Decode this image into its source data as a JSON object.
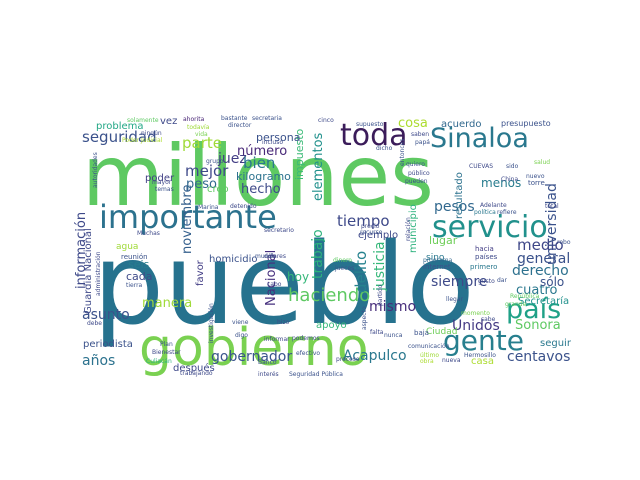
{
  "cloud": {
    "colors": {
      "teal_dark": "#2a7c8e",
      "green": "#5ec962",
      "purple_dark": "#3b1c5a",
      "blue": "#3b528b",
      "teal": "#21918c",
      "lime": "#addc30",
      "yellow_green": "#a0da39",
      "teal_light": "#1fa187"
    },
    "words": [
      {
        "text": "pueblo",
        "color": "#26728e"
      },
      {
        "text": "millones",
        "color": "#5ec962"
      },
      {
        "text": "gobierno",
        "color": "#7ad151"
      },
      {
        "text": "importante",
        "color": "#2c728e"
      },
      {
        "text": "toda",
        "color": "#3b1c5a"
      },
      {
        "text": "Sinaloa",
        "color": "#2a788e"
      },
      {
        "text": "servicio",
        "color": "#21918c"
      },
      {
        "text": "país",
        "color": "#1fa187"
      },
      {
        "text": "gente",
        "color": "#277f8e"
      },
      {
        "text": "haciendo",
        "color": "#5ec962"
      },
      {
        "text": "seguridad",
        "color": "#3b528b"
      },
      {
        "text": "parte",
        "color": "#a0da39"
      },
      {
        "text": "juez",
        "color": "#433e85"
      },
      {
        "text": "mejor",
        "color": "#3e4989"
      },
      {
        "text": "peso",
        "color": "#31688e"
      },
      {
        "text": "bien",
        "color": "#2a788e"
      },
      {
        "text": "número",
        "color": "#482878"
      },
      {
        "text": "kilogramo",
        "color": "#2c728e"
      },
      {
        "text": "hecho",
        "color": "#3e4a89"
      },
      {
        "text": "impuesto",
        "color": "#3aba76"
      },
      {
        "text": "elementos",
        "color": "#21918c"
      },
      {
        "text": "pesos",
        "color": "#31688e"
      },
      {
        "text": "cosa",
        "color": "#addc30"
      },
      {
        "text": "menos",
        "color": "#287c8e"
      },
      {
        "text": "universidad",
        "color": "#3b528b"
      },
      {
        "text": "tiempo",
        "color": "#3e4989"
      },
      {
        "text": "trabajo",
        "color": "#2db27d"
      },
      {
        "text": "delito",
        "color": "#26828e"
      },
      {
        "text": "justicia",
        "color": "#35b779"
      },
      {
        "text": "medio",
        "color": "#3f4788"
      },
      {
        "text": "general",
        "color": "#3b528b"
      },
      {
        "text": "derecho",
        "color": "#2d718e"
      },
      {
        "text": "cuatro",
        "color": "#2a788e"
      },
      {
        "text": "siempre",
        "color": "#3e4a89"
      },
      {
        "text": "Unidos",
        "color": "#443a83"
      },
      {
        "text": "Sonora",
        "color": "#5ec962"
      },
      {
        "text": "centavos",
        "color": "#3b528b"
      },
      {
        "text": "Acapulco",
        "color": "#2a788e"
      },
      {
        "text": "mismo",
        "color": "#472d7b"
      },
      {
        "text": "gobernador",
        "color": "#3a548c"
      },
      {
        "text": "información",
        "color": "#3e4989"
      },
      {
        "text": "noviembre",
        "color": "#35608d"
      },
      {
        "text": "manera",
        "color": "#a0da39"
      },
      {
        "text": "asunto",
        "color": "#3b528b"
      },
      {
        "text": "años",
        "color": "#2c728e"
      },
      {
        "text": "Nacional",
        "color": "#46307e"
      },
      {
        "text": "hoy",
        "color": "#35b779"
      },
      {
        "text": "lugar",
        "color": "#6ece58"
      },
      {
        "text": "sólo",
        "color": "#3b528b"
      },
      {
        "text": "seguir",
        "color": "#2a788e"
      },
      {
        "text": "Guardia Nacional",
        "color": "#3e4989"
      },
      {
        "text": "periodista",
        "color": "#3b528b"
      },
      {
        "text": "seis",
        "color": "#287d8e"
      },
      {
        "text": "cada",
        "color": "#3e4a89"
      },
      {
        "text": "después",
        "color": "#3e4989"
      },
      {
        "text": "homicidio",
        "color": "#3b528b"
      },
      {
        "text": "poder",
        "color": "#424086"
      },
      {
        "text": "creo",
        "color": "#5ec962"
      },
      {
        "text": "problema",
        "color": "#22a785"
      },
      {
        "text": "agua",
        "color": "#a0da39"
      },
      {
        "text": "favor",
        "color": "#433e85"
      },
      {
        "text": "apoyo",
        "color": "#35b779"
      },
      {
        "text": "persona",
        "color": "#3b528b"
      },
      {
        "text": "Ciudad",
        "color": "#6ece58"
      },
      {
        "text": "casa",
        "color": "#addc30"
      },
      {
        "text": "resultado",
        "color": "#2c728e"
      },
      {
        "text": "municipio",
        "color": "#2db27d"
      },
      {
        "text": "ejemplo",
        "color": "#3e4989"
      },
      {
        "text": "acuerdo",
        "color": "#31688e"
      },
      {
        "text": "Secretaría",
        "color": "#21918c"
      },
      {
        "text": "presupuesto",
        "color": "#3b528b"
      },
      {
        "text": "vez",
        "color": "#3e4989"
      },
      {
        "text": "momento",
        "color": "#7ad151"
      },
      {
        "text": "sino",
        "color": "#2a788e"
      },
      {
        "text": "internet",
        "color": "#3b528b"
      },
      {
        "text": "programa",
        "color": "#31688e"
      },
      {
        "text": "hacia",
        "color": "#433e85"
      },
      {
        "text": "países",
        "color": "#3e4989"
      },
      {
        "text": "primero",
        "color": "#2a788e"
      },
      {
        "text": "dinero",
        "color": "#5ec962"
      },
      {
        "text": "jueces",
        "color": "#3b528b"
      },
      {
        "text": "reunión",
        "color": "#3b528b"
      },
      {
        "text": "proceso",
        "color": "#3e4989"
      },
      {
        "text": "efectivo",
        "color": "#3b528b"
      },
      {
        "text": "Bienestar",
        "color": "#3e4989"
      },
      {
        "text": "investigación",
        "color": "#3b528b"
      },
      {
        "text": "comunicación",
        "color": "#3b528b"
      },
      {
        "text": "Culiacán",
        "color": "#2db27d"
      },
      {
        "text": "Marina",
        "color": "#3b528b"
      },
      {
        "text": "detenido",
        "color": "#3e4989"
      },
      {
        "text": "secretaria",
        "color": "#3b528b"
      },
      {
        "text": "secretario",
        "color": "#3e4989"
      },
      {
        "text": "director",
        "color": "#3b528b"
      },
      {
        "text": "ahorita",
        "color": "#482475"
      },
      {
        "text": "bastante",
        "color": "#3b528b"
      },
      {
        "text": "Poder Judicial",
        "color": "#addc30"
      },
      {
        "text": "solamente",
        "color": "#5ec962"
      },
      {
        "text": "incluso",
        "color": "#3e4989"
      },
      {
        "text": "todavía",
        "color": "#a0da39"
      },
      {
        "text": "vida",
        "color": "#7ad151"
      },
      {
        "text": "cinco",
        "color": "#3e4989"
      },
      {
        "text": "dicho",
        "color": "#3b528b"
      },
      {
        "text": "saben",
        "color": "#3e4989"
      },
      {
        "text": "papá",
        "color": "#3b528b"
      },
      {
        "text": "quiero",
        "color": "#3b528b"
      },
      {
        "text": "público",
        "color": "#3e4989"
      },
      {
        "text": "pueden",
        "color": "#3b528b"
      },
      {
        "text": "China",
        "color": "#3e4989"
      },
      {
        "text": "salud",
        "color": "#7ad151"
      },
      {
        "text": "torre",
        "color": "#3b528b"
      },
      {
        "text": "total",
        "color": "#3e4989"
      },
      {
        "text": "nuevo",
        "color": "#3b528b"
      },
      {
        "text": "política",
        "color": "#2a788e"
      },
      {
        "text": "refiere",
        "color": "#3b528b"
      },
      {
        "text": "Adelante",
        "color": "#3e4989"
      },
      {
        "text": "República",
        "color": "#5ec962"
      },
      {
        "text": "llegar",
        "color": "#3b528b"
      },
      {
        "text": "gusto",
        "color": "#3e4989"
      },
      {
        "text": "dar",
        "color": "#3b528b"
      },
      {
        "text": "sabe",
        "color": "#3e4989"
      },
      {
        "text": "grande",
        "color": "#5ec962"
      },
      {
        "text": "Hermosillo",
        "color": "#3b528b"
      },
      {
        "text": "obra",
        "color": "#addc30"
      },
      {
        "text": "nueva",
        "color": "#3e4989"
      },
      {
        "text": "último",
        "color": "#a0da39"
      },
      {
        "text": "nunca",
        "color": "#3b528b"
      },
      {
        "text": "falta",
        "color": "#3e4989"
      },
      {
        "text": "baja",
        "color": "#3b528b"
      },
      {
        "text": "podemos",
        "color": "#3e4989"
      },
      {
        "text": "mundo",
        "color": "#3b528b"
      },
      {
        "text": "dólares",
        "color": "#3e4989"
      },
      {
        "text": "Banco",
        "color": "#3b528b"
      },
      {
        "text": "interés",
        "color": "#3e4989"
      },
      {
        "text": "Seguridad Pública",
        "color": "#3b528b"
      },
      {
        "text": "trabajando",
        "color": "#3e4989"
      },
      {
        "text": "viene",
        "color": "#3b528b"
      },
      {
        "text": "hizo",
        "color": "#3e4989"
      },
      {
        "text": "digo",
        "color": "#3b528b"
      },
      {
        "text": "informar",
        "color": "#3e4989"
      },
      {
        "text": "temas",
        "color": "#3b528b"
      },
      {
        "text": "mayor",
        "color": "#3e4989"
      },
      {
        "text": "tierra",
        "color": "#3b528b"
      },
      {
        "text": "ningún",
        "color": "#3e4989"
      },
      {
        "text": "recurso",
        "color": "#3b528b"
      },
      {
        "text": "precio",
        "color": "#3e4989"
      },
      {
        "text": "supuesto",
        "color": "#3b528b"
      },
      {
        "text": "CUEVAS",
        "color": "#3e4989"
      },
      {
        "text": "sido",
        "color": "#3b528b"
      },
      {
        "text": "debe",
        "color": "#3e4989"
      },
      {
        "text": "Plan",
        "color": "#3b528b"
      },
      {
        "text": "administración",
        "color": "#3e4989"
      },
      {
        "text": "autoridades",
        "color": "#3b528b"
      },
      {
        "text": "Muchas",
        "color": "#3e4989"
      },
      {
        "text": "grupo",
        "color": "#3b528b"
      },
      {
        "text": "cabo",
        "color": "#3e4989"
      },
      {
        "text": "robo",
        "color": "#3b528b"
      },
      {
        "text": "partido",
        "color": "#3e4989"
      },
      {
        "text": "aspecto",
        "color": "#3b528b"
      },
      {
        "text": "relación",
        "color": "#3e4989"
      },
      {
        "text": "entonces",
        "color": "#3b528b"
      }
    ]
  }
}
